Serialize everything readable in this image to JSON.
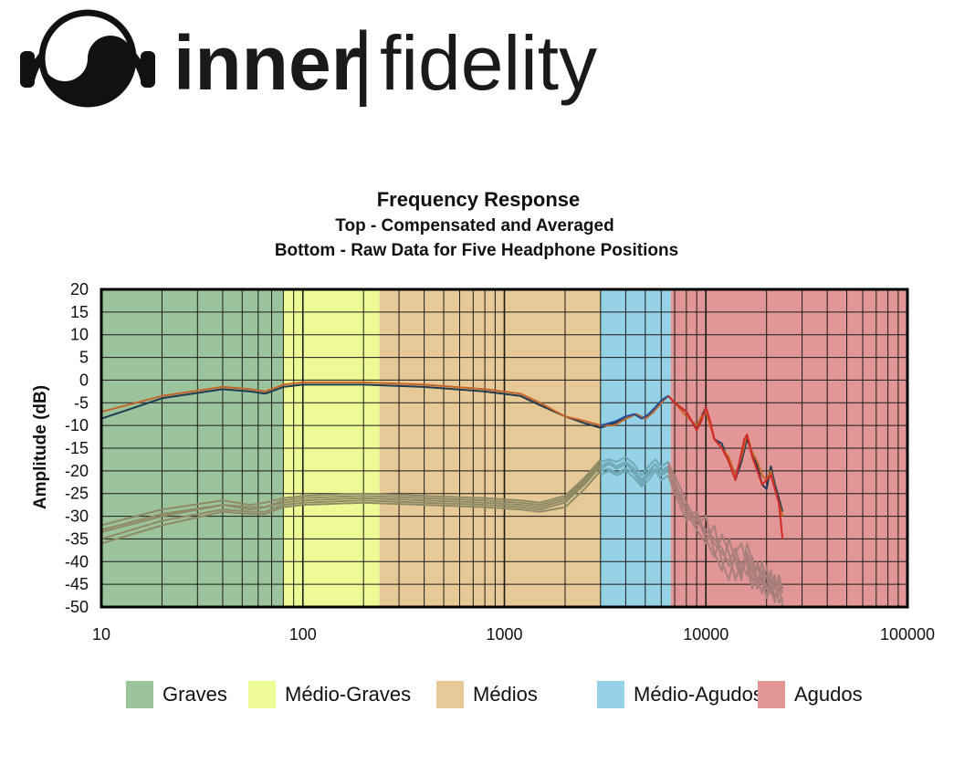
{
  "brand": {
    "name_bold": "inner",
    "separator": "|",
    "name_light": "fidelity"
  },
  "chart_data": {
    "type": "line",
    "title": "Frequency Response",
    "subtitle": [
      "Top -  Compensated and Averaged",
      "Bottom - Raw Data for Five Headphone Positions"
    ],
    "ylabel": "Amplitude (dB)",
    "xlabel": "",
    "x_scale": "log",
    "xlim": [
      10,
      100000
    ],
    "ylim": [
      -50,
      20
    ],
    "x_ticks": [
      "10",
      "100",
      "1000",
      "10000",
      "100000"
    ],
    "y_ticks": [
      "20",
      "15",
      "10",
      "5",
      "0",
      "-5",
      "-10",
      "-15",
      "-20",
      "-25",
      "-30",
      "-35",
      "-40",
      "-45",
      "-50"
    ],
    "grid": true,
    "bands": [
      {
        "name": "Graves",
        "from": 10,
        "to": 80,
        "color": "#9cc49c"
      },
      {
        "name": "Médio-Graves",
        "from": 80,
        "to": 240,
        "color": "#eefa96"
      },
      {
        "name": "Médios",
        "from": 240,
        "to": 3000,
        "color": "#e6c996"
      },
      {
        "name": "Médio-Agudos",
        "from": 3000,
        "to": 6700,
        "color": "#96d2e6"
      },
      {
        "name": "Agudos",
        "from": 6700,
        "to": 100000,
        "color": "#e29696"
      }
    ],
    "series": [
      {
        "color": "#1e3c50",
        "x": [
          10,
          20,
          40,
          55,
          65,
          80,
          100,
          200,
          400,
          800,
          1200,
          1500,
          2000,
          2500,
          3000,
          3500,
          4000,
          4500,
          5000,
          5500,
          6000,
          6500,
          7000,
          8000,
          9000,
          9500,
          10000,
          11000,
          12000,
          13000,
          14000,
          15000,
          16000,
          17000,
          18000,
          19000,
          20000,
          21000,
          22000,
          23000,
          24000
        ],
        "values": [
          -8.5,
          -4,
          -2,
          -2.5,
          -3,
          -1.5,
          -1,
          -1,
          -1.5,
          -2.5,
          -3.5,
          -5.5,
          -8,
          -9.5,
          -10.5,
          -9.5,
          -8.5,
          -7.5,
          -8.5,
          -7,
          -4.5,
          -3.5,
          -5,
          -7,
          -11,
          -8,
          -6,
          -13,
          -14,
          -18,
          -22,
          -18,
          -13,
          -16,
          -19,
          -23,
          -24,
          -19,
          -23,
          -26,
          -29
        ]
      },
      {
        "color": "#c46428",
        "x": [
          10,
          20,
          40,
          55,
          65,
          80,
          100,
          200,
          400,
          800,
          1200,
          1500,
          2000,
          2500,
          3000,
          3500,
          4000,
          4500,
          5000,
          5500,
          6000,
          6500,
          7000,
          8000,
          9000,
          9500,
          10000,
          11000,
          12000,
          13000,
          14000,
          15000,
          16000,
          17000,
          18000,
          19000,
          20000,
          21000,
          22000,
          23000,
          24000
        ],
        "values": [
          -7,
          -3.5,
          -1.5,
          -2,
          -2.5,
          -1,
          -0.5,
          -0.5,
          -1,
          -2,
          -3,
          -5,
          -8,
          -9,
          -10,
          -10,
          -8.5,
          -7.5,
          -8.5,
          -7,
          -5,
          -3.5,
          -5,
          -8,
          -10,
          -8,
          -7,
          -13,
          -15,
          -17,
          -21,
          -17,
          -12,
          -16,
          -18,
          -21,
          -22,
          -20,
          -24,
          -27,
          -30
        ]
      },
      {
        "color": "#1f4e9a",
        "x": [
          3000,
          3300,
          3600,
          4000,
          4400,
          4800,
          5200,
          5600,
          6000,
          6500
        ],
        "values": [
          -10,
          -9.5,
          -9,
          -8,
          -7.5,
          -8.5,
          -7.5,
          -6,
          -4.5,
          -3.5
        ]
      },
      {
        "color": "#d22828",
        "x": [
          6500,
          7000,
          7500,
          8000,
          8500,
          9000,
          9500,
          10000,
          10500,
          11000,
          12000,
          13000,
          14000,
          15000,
          15500,
          16000,
          17000,
          18000,
          19000,
          20000,
          21000,
          22000,
          23000,
          24000
        ],
        "values": [
          -3.5,
          -5,
          -6,
          -7,
          -9,
          -11,
          -9,
          -6,
          -9,
          -13,
          -15,
          -18,
          -22,
          -16,
          -13,
          -12,
          -17,
          -20,
          -23,
          -22,
          -21,
          -24,
          -27,
          -35
        ]
      },
      {
        "color": "#8f8a66",
        "x": [
          10,
          20,
          40,
          55,
          65,
          80,
          100,
          200,
          400,
          800,
          1200,
          1500,
          2000,
          2500,
          3000
        ],
        "values": [
          -33,
          -29.5,
          -27.5,
          -28.5,
          -28,
          -26.5,
          -26,
          -25.5,
          -26,
          -26.5,
          -27,
          -27.5,
          -26,
          -22,
          -18
        ]
      },
      {
        "color": "#8f8a66",
        "x": [
          10,
          20,
          40,
          55,
          65,
          80,
          100,
          200,
          400,
          800,
          1200,
          1500,
          2000,
          2500,
          3000
        ],
        "values": [
          -35,
          -31,
          -28.5,
          -29,
          -29,
          -27.5,
          -27,
          -26.5,
          -27,
          -27.5,
          -28,
          -28.5,
          -27,
          -23,
          -19
        ]
      },
      {
        "color": "#8f8a66",
        "x": [
          10,
          20,
          40,
          55,
          65,
          80,
          100,
          200,
          400,
          800,
          1200,
          1500,
          2000,
          2500,
          3000
        ],
        "values": [
          -32,
          -28.5,
          -26.5,
          -27.5,
          -27,
          -26,
          -25.5,
          -25,
          -25.5,
          -26,
          -26.5,
          -27,
          -25.5,
          -21.5,
          -17.5
        ]
      },
      {
        "color": "#8f8a66",
        "x": [
          10,
          20,
          40,
          55,
          65,
          80,
          100,
          200,
          400,
          800,
          1200,
          1500,
          2000,
          2500,
          3000
        ],
        "values": [
          -36,
          -32,
          -29,
          -29.5,
          -29.5,
          -28,
          -27.5,
          -27,
          -27.5,
          -28,
          -28.5,
          -29,
          -28,
          -24,
          -20
        ]
      },
      {
        "color": "#8f8a66",
        "x": [
          10,
          20,
          40,
          55,
          65,
          80,
          100,
          200,
          400,
          800,
          1200,
          1500,
          2000,
          2500,
          3000
        ],
        "values": [
          -33.5,
          -30,
          -27.5,
          -28,
          -28,
          -27,
          -26.5,
          -26,
          -26.5,
          -27,
          -27.5,
          -28,
          -26.5,
          -22.5,
          -18.5
        ]
      },
      {
        "color": "#6fa8b6",
        "x": [
          3000,
          3300,
          3600,
          4000,
          4400,
          4800,
          5200,
          5600,
          6000,
          6500
        ],
        "values": [
          -18,
          -17.5,
          -18,
          -17,
          -18.5,
          -21,
          -19,
          -17.5,
          -19,
          -18
        ]
      },
      {
        "color": "#6fa8b6",
        "x": [
          3000,
          3300,
          3600,
          4000,
          4400,
          4800,
          5200,
          5600,
          6000,
          6500
        ],
        "values": [
          -19,
          -18,
          -19,
          -18,
          -19.5,
          -22,
          -20,
          -18.5,
          -20,
          -19
        ]
      },
      {
        "color": "#6fa8b6",
        "x": [
          3000,
          3300,
          3600,
          4000,
          4400,
          4800,
          5200,
          5600,
          6000,
          6500
        ],
        "values": [
          -20,
          -19.5,
          -20.5,
          -19.5,
          -20.5,
          -23,
          -21,
          -19.5,
          -21,
          -20
        ]
      },
      {
        "color": "#6fa8b6",
        "x": [
          3000,
          3300,
          3600,
          4000,
          4400,
          4800,
          5200,
          5600,
          6000,
          6500
        ],
        "values": [
          -21,
          -20,
          -21,
          -20,
          -21.5,
          -23.5,
          -22,
          -20,
          -22,
          -21
        ]
      },
      {
        "color": "#6fa8b6",
        "x": [
          3000,
          3300,
          3600,
          4000,
          4400,
          4800,
          5200,
          5600,
          6000,
          6500
        ],
        "values": [
          -19.5,
          -18.5,
          -19.5,
          -18.5,
          -20,
          -22.5,
          -20.5,
          -18.5,
          -20.5,
          -19.5
        ]
      },
      {
        "color": "#a87f7a",
        "x": [
          6500,
          7000,
          7500,
          8000,
          9000,
          10000,
          11000,
          12000,
          13000,
          14000,
          15000,
          16000,
          17000,
          18000,
          19000,
          20000,
          21000,
          22000,
          23000,
          24000
        ],
        "values": [
          -18,
          -22,
          -26,
          -28,
          -32,
          -30,
          -38,
          -42,
          -35,
          -40,
          -44,
          -36,
          -40,
          -46,
          -42,
          -48,
          -45,
          -43,
          -49,
          -48
        ]
      },
      {
        "color": "#a87f7a",
        "x": [
          6500,
          7000,
          7500,
          8000,
          9000,
          10000,
          11000,
          12000,
          13000,
          14000,
          15000,
          16000,
          17000,
          18000,
          19000,
          20000,
          21000,
          22000,
          23000,
          24000
        ],
        "values": [
          -19,
          -24,
          -25,
          -30,
          -29,
          -34,
          -36,
          -38,
          -40,
          -37,
          -42,
          -39,
          -44,
          -41,
          -45,
          -43,
          -47,
          -44,
          -45,
          -50
        ]
      },
      {
        "color": "#a87f7a",
        "x": [
          6500,
          7000,
          7500,
          8000,
          9000,
          10000,
          11000,
          12000,
          13000,
          14000,
          15000,
          16000,
          17000,
          18000,
          19000,
          20000,
          21000,
          22000,
          23000,
          24000
        ],
        "values": [
          -20,
          -23,
          -27,
          -29,
          -33,
          -36,
          -32,
          -40,
          -44,
          -38,
          -36,
          -41,
          -46,
          -40,
          -44,
          -48,
          -42,
          -46,
          -44,
          -47
        ]
      },
      {
        "color": "#a87f7a",
        "x": [
          6500,
          7000,
          7500,
          8000,
          9000,
          10000,
          11000,
          12000,
          13000,
          14000,
          15000,
          16000,
          17000,
          18000,
          19000,
          20000,
          21000,
          22000,
          23000,
          24000
        ],
        "values": [
          -21,
          -25,
          -28,
          -31,
          -30,
          -35,
          -39,
          -34,
          -38,
          -44,
          -40,
          -43,
          -39,
          -44,
          -47,
          -41,
          -46,
          -49,
          -43,
          -46
        ]
      },
      {
        "color": "#a87f7a",
        "x": [
          6500,
          7000,
          7500,
          8000,
          9000,
          10000,
          11000,
          12000,
          13000,
          14000,
          15000,
          16000,
          17000,
          18000,
          19000,
          20000,
          21000,
          22000,
          23000,
          24000
        ],
        "values": [
          -18.5,
          -21,
          -24,
          -27,
          -31,
          -33,
          -35,
          -37,
          -41,
          -39,
          -43,
          -38,
          -42,
          -45,
          -40,
          -46,
          -44,
          -48,
          -46,
          -49
        ]
      }
    ]
  }
}
